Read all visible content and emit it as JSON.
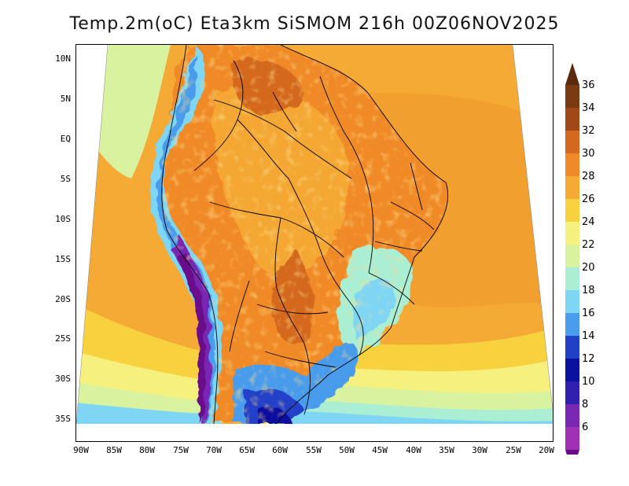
{
  "title": "Temp.2m(oC) Eta3km SiSMOM 216h 00Z06NOV2025",
  "lat_axis": [
    "10N",
    "5N",
    "EQ",
    "5S",
    "10S",
    "15S",
    "20S",
    "25S",
    "30S",
    "35S"
  ],
  "lon_axis": [
    "90W",
    "85W",
    "80W",
    "75W",
    "70W",
    "65W",
    "60W",
    "55W",
    "50W",
    "45W",
    "40W",
    "35W",
    "30W",
    "25W",
    "20W"
  ],
  "colorbar": {
    "labels": [
      "36",
      "34",
      "32",
      "30",
      "28",
      "26",
      "24",
      "22",
      "20",
      "18",
      "16",
      "14",
      "12",
      "10",
      "8",
      "6"
    ],
    "colors": [
      "#5a2a10",
      "#7a3a12",
      "#a04818",
      "#d4681e",
      "#f08a28",
      "#f4aa34",
      "#f7d23e",
      "#f6f07e",
      "#d8f2a0",
      "#aaeed4",
      "#7fd6f4",
      "#4a9cec",
      "#2040c8",
      "#0a10a0",
      "#3020b0",
      "#7a28b4",
      "#a030b4",
      "#6a0a8a"
    ]
  }
}
